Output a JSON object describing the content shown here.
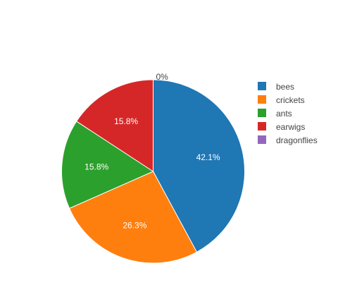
{
  "chart_data": {
    "type": "pie",
    "labels": [
      "bees",
      "crickets",
      "ants",
      "earwigs",
      "dragonflies"
    ],
    "values": [
      42.1,
      26.3,
      15.8,
      15.8,
      0
    ],
    "display_labels": [
      "42.1%",
      "26.3%",
      "15.8%",
      "15.8%",
      "0%"
    ],
    "colors": [
      "#1f77b4",
      "#ff7f0e",
      "#2ca02c",
      "#d62728",
      "#9467bd"
    ],
    "direction": "clockwise",
    "start": "top",
    "legend_position": "right"
  }
}
